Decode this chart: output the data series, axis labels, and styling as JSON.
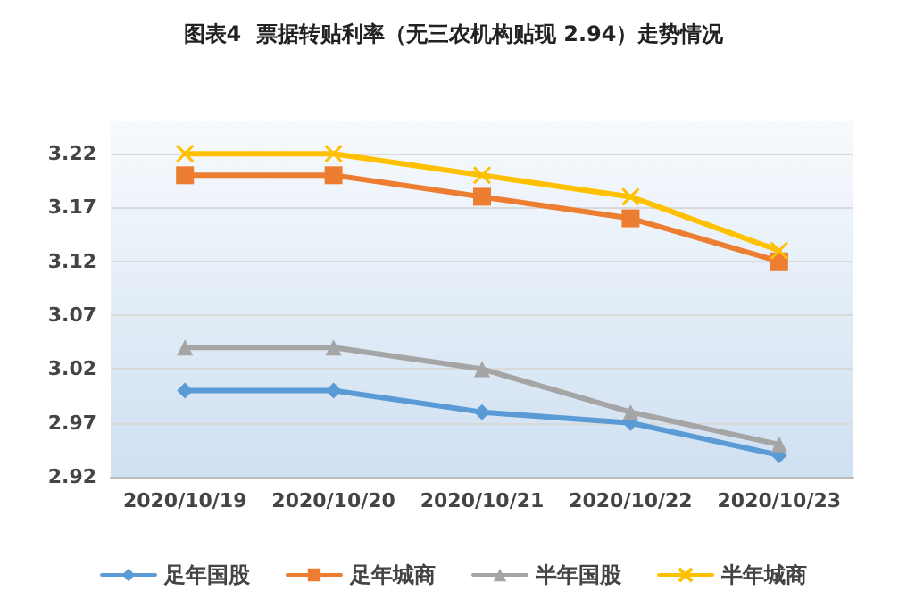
{
  "chart_data": {
    "type": "line",
    "title": "图表4  票据转贴利率（无三农机构贴现 2.94）走势情况",
    "categories": [
      "2020/10/19",
      "2020/10/20",
      "2020/10/21",
      "2020/10/22",
      "2020/10/23"
    ],
    "series": [
      {
        "name": "足年国股",
        "color": "#5b9bd5",
        "marker": "diamond",
        "values": [
          3.0,
          3.0,
          2.98,
          2.97,
          2.94
        ]
      },
      {
        "name": "足年城商",
        "color": "#ed7d31",
        "marker": "square",
        "values": [
          3.2,
          3.2,
          3.18,
          3.16,
          3.12
        ]
      },
      {
        "name": "半年国股",
        "color": "#a5a5a5",
        "marker": "triangle",
        "values": [
          3.04,
          3.04,
          3.02,
          2.98,
          2.95
        ]
      },
      {
        "name": "半年城商",
        "color": "#ffc000",
        "marker": "cross",
        "values": [
          3.22,
          3.22,
          3.2,
          3.18,
          3.13
        ]
      }
    ],
    "ylim": [
      2.92,
      3.25
    ],
    "yticks": [
      2.92,
      2.97,
      3.02,
      3.07,
      3.12,
      3.17,
      3.22
    ],
    "grid": "y",
    "legend": "bottom"
  }
}
